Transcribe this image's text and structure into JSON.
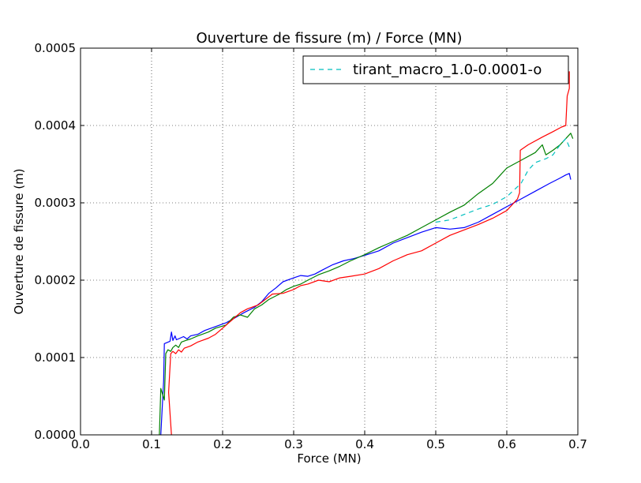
{
  "chart_data": {
    "type": "line",
    "title": "Ouverture de fissure (m) / Force (MN)",
    "xlabel": "Force (MN)",
    "ylabel": "Ouverture de fissure (m)",
    "xlim": [
      0.0,
      0.7
    ],
    "ylim": [
      0.0,
      0.0005
    ],
    "x_ticks": [
      "0.0",
      "0.1",
      "0.2",
      "0.3",
      "0.4",
      "0.5",
      "0.6",
      "0.7"
    ],
    "y_ticks": [
      "0.0000",
      "0.0001",
      "0.0002",
      "0.0003",
      "0.0004",
      "0.0005"
    ],
    "grid": true,
    "legend_position": "top-right",
    "legend": [
      {
        "label": "tirant_macro_1.0-0.0001-o",
        "color": "#00bfbf",
        "style": "dashed"
      }
    ],
    "series": [
      {
        "color": "#0000ff",
        "style": "solid",
        "points": [
          [
            0.113,
            0.0
          ],
          [
            0.117,
            7e-05
          ],
          [
            0.118,
            0.000118
          ],
          [
            0.126,
            0.000121
          ],
          [
            0.128,
            0.000133
          ],
          [
            0.13,
            0.000122
          ],
          [
            0.133,
            0.000128
          ],
          [
            0.135,
            0.000123
          ],
          [
            0.145,
            0.000127
          ],
          [
            0.15,
            0.000124
          ],
          [
            0.155,
            0.000128
          ],
          [
            0.165,
            0.00013
          ],
          [
            0.175,
            0.000135
          ],
          [
            0.19,
            0.00014
          ],
          [
            0.205,
            0.000145
          ],
          [
            0.215,
            0.00015
          ],
          [
            0.23,
            0.000158
          ],
          [
            0.245,
            0.000165
          ],
          [
            0.255,
            0.000172
          ],
          [
            0.265,
            0.000183
          ],
          [
            0.275,
            0.00019
          ],
          [
            0.285,
            0.000198
          ],
          [
            0.3,
            0.000203
          ],
          [
            0.31,
            0.000206
          ],
          [
            0.32,
            0.000205
          ],
          [
            0.33,
            0.000208
          ],
          [
            0.34,
            0.000213
          ],
          [
            0.355,
            0.00022
          ],
          [
            0.37,
            0.000225
          ],
          [
            0.385,
            0.000228
          ],
          [
            0.4,
            0.000232
          ],
          [
            0.42,
            0.000238
          ],
          [
            0.44,
            0.000248
          ],
          [
            0.46,
            0.000255
          ],
          [
            0.48,
            0.000262
          ],
          [
            0.5,
            0.000268
          ],
          [
            0.52,
            0.000266
          ],
          [
            0.54,
            0.000268
          ],
          [
            0.56,
            0.000275
          ],
          [
            0.58,
            0.000285
          ],
          [
            0.6,
            0.000295
          ],
          [
            0.62,
            0.000305
          ],
          [
            0.64,
            0.000315
          ],
          [
            0.66,
            0.000325
          ],
          [
            0.675,
            0.000332
          ],
          [
            0.683,
            0.000336
          ],
          [
            0.688,
            0.000338
          ],
          [
            0.69,
            0.00033
          ]
        ]
      },
      {
        "color": "#008000",
        "style": "solid",
        "points": [
          [
            0.111,
            0.0
          ],
          [
            0.113,
            6e-05
          ],
          [
            0.118,
            4.5e-05
          ],
          [
            0.12,
            0.000105
          ],
          [
            0.123,
            0.00011
          ],
          [
            0.127,
            0.000108
          ],
          [
            0.13,
            0.000113
          ],
          [
            0.134,
            0.000116
          ],
          [
            0.138,
            0.000113
          ],
          [
            0.142,
            0.00012
          ],
          [
            0.148,
            0.000122
          ],
          [
            0.155,
            0.000124
          ],
          [
            0.165,
            0.000128
          ],
          [
            0.18,
            0.000133
          ],
          [
            0.19,
            0.000138
          ],
          [
            0.205,
            0.000142
          ],
          [
            0.215,
            0.000152
          ],
          [
            0.225,
            0.000155
          ],
          [
            0.235,
            0.000152
          ],
          [
            0.245,
            0.000163
          ],
          [
            0.255,
            0.000168
          ],
          [
            0.265,
            0.000175
          ],
          [
            0.28,
            0.000182
          ],
          [
            0.29,
            0.000188
          ],
          [
            0.3,
            0.000192
          ],
          [
            0.31,
            0.000195
          ],
          [
            0.32,
            0.0002
          ],
          [
            0.335,
            0.000207
          ],
          [
            0.35,
            0.000212
          ],
          [
            0.365,
            0.000218
          ],
          [
            0.38,
            0.000225
          ],
          [
            0.4,
            0.000233
          ],
          [
            0.42,
            0.000242
          ],
          [
            0.44,
            0.00025
          ],
          [
            0.46,
            0.000258
          ],
          [
            0.48,
            0.000268
          ],
          [
            0.5,
            0.000278
          ],
          [
            0.52,
            0.000288
          ],
          [
            0.54,
            0.000297
          ],
          [
            0.56,
            0.000312
          ],
          [
            0.58,
            0.000325
          ],
          [
            0.6,
            0.000345
          ],
          [
            0.62,
            0.000355
          ],
          [
            0.64,
            0.000365
          ],
          [
            0.65,
            0.000375
          ],
          [
            0.655,
            0.000362
          ],
          [
            0.665,
            0.000368
          ],
          [
            0.675,
            0.000375
          ],
          [
            0.685,
            0.000385
          ],
          [
            0.69,
            0.00039
          ],
          [
            0.693,
            0.000383
          ]
        ]
      },
      {
        "color": "#ff0000",
        "style": "solid",
        "points": [
          [
            0.128,
            0.0
          ],
          [
            0.124,
            5.5e-05
          ],
          [
            0.125,
            7.2e-05
          ],
          [
            0.127,
            0.000105
          ],
          [
            0.13,
            0.000108
          ],
          [
            0.134,
            0.000105
          ],
          [
            0.138,
            0.00011
          ],
          [
            0.142,
            0.000107
          ],
          [
            0.146,
            0.000112
          ],
          [
            0.155,
            0.000115
          ],
          [
            0.165,
            0.00012
          ],
          [
            0.18,
            0.000125
          ],
          [
            0.19,
            0.00013
          ],
          [
            0.2,
            0.000138
          ],
          [
            0.215,
            0.00015
          ],
          [
            0.225,
            0.000158
          ],
          [
            0.235,
            0.000163
          ],
          [
            0.25,
            0.000168
          ],
          [
            0.26,
            0.000175
          ],
          [
            0.27,
            0.000182
          ],
          [
            0.285,
            0.000183
          ],
          [
            0.3,
            0.000188
          ],
          [
            0.31,
            0.000193
          ],
          [
            0.32,
            0.000195
          ],
          [
            0.335,
            0.0002
          ],
          [
            0.35,
            0.000198
          ],
          [
            0.365,
            0.000203
          ],
          [
            0.38,
            0.000205
          ],
          [
            0.4,
            0.000208
          ],
          [
            0.42,
            0.000215
          ],
          [
            0.44,
            0.000225
          ],
          [
            0.46,
            0.000233
          ],
          [
            0.48,
            0.000238
          ],
          [
            0.5,
            0.000248
          ],
          [
            0.52,
            0.000258
          ],
          [
            0.54,
            0.000265
          ],
          [
            0.56,
            0.000272
          ],
          [
            0.58,
            0.00028
          ],
          [
            0.6,
            0.00029
          ],
          [
            0.615,
            0.000305
          ],
          [
            0.618,
            0.000313
          ],
          [
            0.619,
            0.000368
          ],
          [
            0.63,
            0.000375
          ],
          [
            0.65,
            0.000385
          ],
          [
            0.665,
            0.000392
          ],
          [
            0.677,
            0.000398
          ],
          [
            0.683,
            0.0004
          ],
          [
            0.685,
            0.000438
          ],
          [
            0.688,
            0.000448
          ],
          [
            0.688,
            0.00047
          ]
        ]
      },
      {
        "name": "tirant_macro_1.0-0.0001-o",
        "color": "#00bfbf",
        "style": "dashed",
        "points": [
          [
            0.5,
            0.000275
          ],
          [
            0.52,
            0.000278
          ],
          [
            0.54,
            0.000285
          ],
          [
            0.56,
            0.000292
          ],
          [
            0.58,
            0.000298
          ],
          [
            0.6,
            0.000308
          ],
          [
            0.62,
            0.000325
          ],
          [
            0.63,
            0.000342
          ],
          [
            0.64,
            0.000352
          ],
          [
            0.655,
            0.000357
          ],
          [
            0.665,
            0.000362
          ],
          [
            0.675,
            0.000375
          ],
          [
            0.683,
            0.000383
          ],
          [
            0.69,
            0.000368
          ]
        ]
      }
    ]
  }
}
